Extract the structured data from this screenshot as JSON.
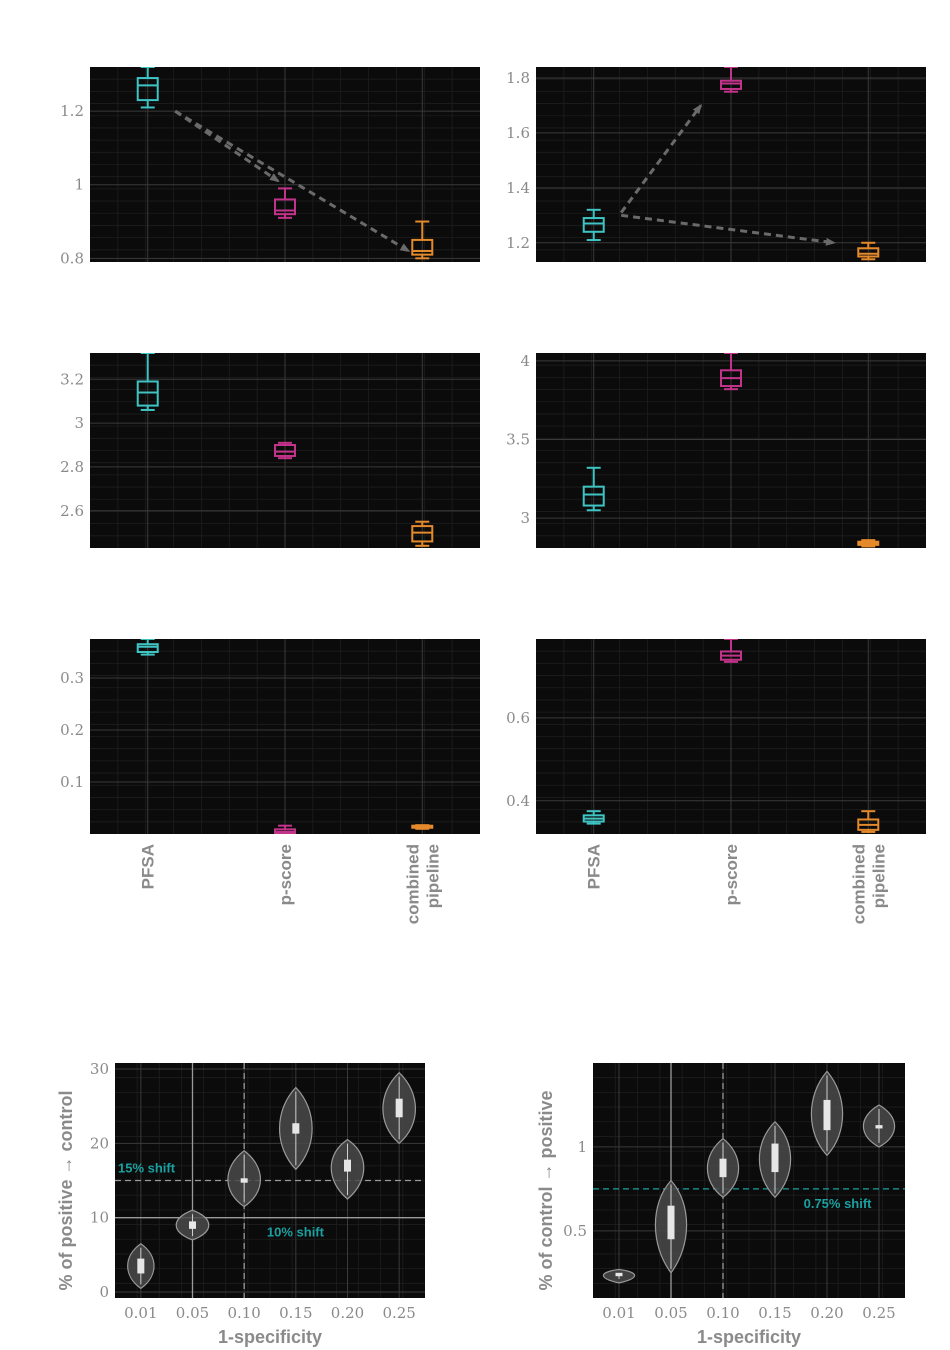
{
  "colors": {
    "pfsa": "#3fc3c3",
    "pscore": "#c2338a",
    "combined": "#e58a2a",
    "panel_bg": "#0b0b0b",
    "grid": "#2c2c2c",
    "tick_text": "#8a8a8a",
    "arrow": "#6a6a6a",
    "annotation": "#1aa0a0",
    "violin": "#4a4a4a",
    "violin_edge": "#9a9a9a"
  },
  "chart_data": [
    {
      "type": "box",
      "panel": "row1-left",
      "categories": [
        "PFSA",
        "p-score",
        "combined pipeline"
      ],
      "ylim": [
        0.79,
        1.32
      ],
      "yticks": [
        "0.8",
        "1",
        "1.2"
      ],
      "boxes": [
        {
          "whislo": 1.21,
          "q1": 1.23,
          "med": 1.27,
          "q3": 1.29,
          "whishi": 1.32
        },
        {
          "whislo": 0.91,
          "q1": 0.92,
          "med": 0.93,
          "q3": 0.96,
          "whishi": 0.99
        },
        {
          "whislo": 0.8,
          "q1": 0.81,
          "med": 0.82,
          "q3": 0.85,
          "whishi": 0.9
        }
      ],
      "arrows": [
        {
          "from": [
            0.2,
            1.2
          ],
          "to": [
            0.95,
            1.01
          ]
        },
        {
          "from": [
            0.2,
            1.2
          ],
          "to": [
            1.9,
            0.82
          ]
        }
      ],
      "grid": true
    },
    {
      "type": "box",
      "panel": "row1-right",
      "categories": [
        "PFSA",
        "p-score",
        "combined pipeline"
      ],
      "ylim": [
        1.13,
        1.84
      ],
      "yticks": [
        "1.2",
        "1.4",
        "1.6",
        "1.8"
      ],
      "boxes": [
        {
          "whislo": 1.21,
          "q1": 1.24,
          "med": 1.27,
          "q3": 1.29,
          "whishi": 1.32
        },
        {
          "whislo": 1.75,
          "q1": 1.76,
          "med": 1.78,
          "q3": 1.79,
          "whishi": 1.84
        },
        {
          "whislo": 1.14,
          "q1": 1.15,
          "med": 1.16,
          "q3": 1.18,
          "whishi": 1.2
        }
      ],
      "arrows": [
        {
          "from": [
            0.2,
            1.31
          ],
          "to": [
            0.78,
            1.7
          ]
        },
        {
          "from": [
            0.2,
            1.3
          ],
          "to": [
            1.75,
            1.2
          ]
        }
      ],
      "grid": true
    },
    {
      "type": "box",
      "panel": "row2-left",
      "categories": [
        "PFSA",
        "p-score",
        "combined pipeline"
      ],
      "ylim": [
        2.43,
        3.32
      ],
      "yticks": [
        "2.6",
        "2.8",
        "3",
        "3.2"
      ],
      "boxes": [
        {
          "whislo": 3.06,
          "q1": 3.08,
          "med": 3.14,
          "q3": 3.19,
          "whishi": 3.32
        },
        {
          "whislo": 2.84,
          "q1": 2.85,
          "med": 2.87,
          "q3": 2.9,
          "whishi": 2.91
        },
        {
          "whislo": 2.44,
          "q1": 2.46,
          "med": 2.5,
          "q3": 2.53,
          "whishi": 2.55
        }
      ],
      "grid": true
    },
    {
      "type": "box",
      "panel": "row2-right",
      "categories": [
        "PFSA",
        "p-score",
        "combined pipeline"
      ],
      "ylim": [
        2.81,
        4.05
      ],
      "yticks": [
        "3",
        "3.5",
        "4"
      ],
      "boxes": [
        {
          "whislo": 3.05,
          "q1": 3.08,
          "med": 3.15,
          "q3": 3.2,
          "whishi": 3.32
        },
        {
          "whislo": 3.82,
          "q1": 3.84,
          "med": 3.89,
          "q3": 3.94,
          "whishi": 4.05
        },
        {
          "whislo": 2.82,
          "q1": 2.83,
          "med": 2.84,
          "q3": 2.85,
          "whishi": 2.86
        }
      ],
      "grid": true
    },
    {
      "type": "box",
      "panel": "row3-left",
      "categories": [
        "PFSA",
        "p-score",
        "combined pipeline"
      ],
      "ylim": [
        0.0,
        0.375
      ],
      "yticks": [
        "0.1",
        "0.2",
        "0.3"
      ],
      "boxes": [
        {
          "whislo": 0.345,
          "q1": 0.35,
          "med": 0.36,
          "q3": 0.365,
          "whishi": 0.375
        },
        {
          "whislo": 0.0,
          "q1": 0.001,
          "med": 0.004,
          "q3": 0.009,
          "whishi": 0.016
        },
        {
          "whislo": 0.01,
          "q1": 0.012,
          "med": 0.014,
          "q3": 0.016,
          "whishi": 0.017
        }
      ],
      "grid": true
    },
    {
      "type": "box",
      "panel": "row3-right",
      "categories": [
        "PFSA",
        "p-score",
        "combined pipeline"
      ],
      "ylim": [
        0.32,
        0.79
      ],
      "yticks": [
        "0.4",
        "0.6"
      ],
      "boxes": [
        {
          "whislo": 0.345,
          "q1": 0.35,
          "med": 0.357,
          "q3": 0.365,
          "whishi": 0.375
        },
        {
          "whislo": 0.735,
          "q1": 0.74,
          "med": 0.75,
          "q3": 0.76,
          "whishi": 0.79
        },
        {
          "whislo": 0.325,
          "q1": 0.33,
          "med": 0.342,
          "q3": 0.355,
          "whishi": 0.375
        }
      ],
      "grid": true
    },
    {
      "type": "violin",
      "panel": "bottom-left",
      "categories": [
        "0.01",
        "0.05",
        "0.10",
        "0.15",
        "0.20",
        "0.25"
      ],
      "xlabel": "1-specificity",
      "ylabel": "% of positive → control",
      "ylim": [
        -0.8,
        30.8
      ],
      "yticks": [
        "0",
        "10",
        "20",
        "30"
      ],
      "violins": [
        {
          "min": 0.5,
          "max": 6.5,
          "center": 3.5,
          "q1": 2.5,
          "q3": 4.5,
          "halfwidth": 0.34
        },
        {
          "min": 7.0,
          "max": 11.0,
          "center": 9.0,
          "q1": 8.5,
          "q3": 9.5,
          "halfwidth": 0.42
        },
        {
          "min": 11.5,
          "max": 19.0,
          "center": 15.0,
          "q1": 14.7,
          "q3": 15.3,
          "halfwidth": 0.42
        },
        {
          "min": 16.5,
          "max": 27.5,
          "center": 22.0,
          "q1": 21.3,
          "q3": 22.7,
          "halfwidth": 0.42
        },
        {
          "min": 12.5,
          "max": 20.5,
          "center": 17.0,
          "q1": 16.2,
          "q3": 17.8,
          "halfwidth": 0.42
        },
        {
          "min": 20.0,
          "max": 29.5,
          "center": 24.5,
          "q1": 23.5,
          "q3": 26.0,
          "halfwidth": 0.42
        }
      ],
      "hlines": [
        {
          "y": 15,
          "style": "dashed",
          "label": "15% shift"
        },
        {
          "y": 10,
          "style": "solid",
          "label": "10% shift"
        }
      ],
      "vlines": [
        {
          "x": "0.05",
          "style": "solid"
        },
        {
          "x": "0.10",
          "style": "dashed"
        }
      ],
      "grid": true
    },
    {
      "type": "violin",
      "panel": "bottom-right",
      "categories": [
        "0.01",
        "0.05",
        "0.10",
        "0.15",
        "0.20",
        "0.25"
      ],
      "xlabel": "1-specificity",
      "ylabel": "% of control → positive",
      "ylim": [
        0.1,
        1.5
      ],
      "yticks": [
        "0.5",
        "1"
      ],
      "violins": [
        {
          "min": 0.19,
          "max": 0.27,
          "center": 0.24,
          "q1": 0.23,
          "q3": 0.25,
          "halfwidth": 0.4
        },
        {
          "min": 0.25,
          "max": 0.8,
          "center": 0.55,
          "q1": 0.45,
          "q3": 0.65,
          "halfwidth": 0.4
        },
        {
          "min": 0.7,
          "max": 1.05,
          "center": 0.87,
          "q1": 0.82,
          "q3": 0.93,
          "halfwidth": 0.4
        },
        {
          "min": 0.7,
          "max": 1.15,
          "center": 0.93,
          "q1": 0.85,
          "q3": 1.02,
          "halfwidth": 0.4
        },
        {
          "min": 0.95,
          "max": 1.45,
          "center": 1.19,
          "q1": 1.1,
          "q3": 1.28,
          "halfwidth": 0.4
        },
        {
          "min": 1.0,
          "max": 1.25,
          "center": 1.12,
          "q1": 1.11,
          "q3": 1.13,
          "halfwidth": 0.4
        }
      ],
      "hlines": [
        {
          "y": 0.75,
          "style": "dashed",
          "label": "0.75% shift"
        }
      ],
      "vlines": [
        {
          "x": "0.05",
          "style": "solid"
        },
        {
          "x": "0.10",
          "style": "dashed"
        }
      ],
      "grid": true
    }
  ]
}
